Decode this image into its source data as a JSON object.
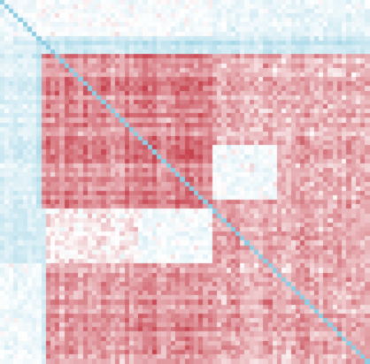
{
  "chart_data": {
    "type": "heatmap",
    "title": "",
    "xlabel": "",
    "ylabel": "",
    "n_rows": 80,
    "n_cols": 80,
    "value_range": [
      -1,
      1
    ],
    "colors": {
      "positive": "#c7434f",
      "neutral": "#ffffff",
      "negative": "#9fd4e6",
      "diagonal": "#8fcde3"
    },
    "diagonal_value": -1,
    "blocks": [
      {
        "rows": [
          0,
          8
        ],
        "cols": [
          0,
          8
        ],
        "mean": -0.15,
        "noise": 0.35
      },
      {
        "rows": [
          0,
          8
        ],
        "cols": [
          8,
          46
        ],
        "mean": -0.05,
        "noise": 0.3
      },
      {
        "rows": [
          0,
          8
        ],
        "cols": [
          46,
          80
        ],
        "mean": -0.2,
        "noise": 0.3
      },
      {
        "rows": [
          8,
          12
        ],
        "cols": [
          8,
          80
        ],
        "mean": -0.55,
        "noise": 0.25
      },
      {
        "rows": [
          8,
          46
        ],
        "cols": [
          0,
          8
        ],
        "mean": -0.35,
        "noise": 0.3
      },
      {
        "rows": [
          8,
          46
        ],
        "cols": [
          8,
          9
        ],
        "mean": -0.7,
        "noise": 0.15
      },
      {
        "rows": [
          12,
          46
        ],
        "cols": [
          9,
          46
        ],
        "mean": 0.62,
        "noise": 0.28
      },
      {
        "rows": [
          12,
          46
        ],
        "cols": [
          46,
          80
        ],
        "mean": 0.42,
        "noise": 0.35
      },
      {
        "rows": [
          32,
          44
        ],
        "cols": [
          46,
          60
        ],
        "mean": -0.1,
        "noise": 0.35
      },
      {
        "rows": [
          46,
          58
        ],
        "cols": [
          0,
          9
        ],
        "mean": -0.45,
        "noise": 0.3
      },
      {
        "rows": [
          46,
          58
        ],
        "cols": [
          9,
          46
        ],
        "mean": 0.1,
        "noise": 0.4
      },
      {
        "rows": [
          46,
          58
        ],
        "cols": [
          30,
          46
        ],
        "mean": -0.1,
        "noise": 0.35
      },
      {
        "rows": [
          46,
          80
        ],
        "cols": [
          46,
          80
        ],
        "mean": 0.45,
        "noise": 0.35
      },
      {
        "rows": [
          58,
          80
        ],
        "cols": [
          0,
          9
        ],
        "mean": -0.15,
        "noise": 0.35
      },
      {
        "rows": [
          58,
          80
        ],
        "cols": [
          9,
          46
        ],
        "mean": 0.55,
        "noise": 0.32
      },
      {
        "rows": [
          46,
          80
        ],
        "cols": [
          9,
          10
        ],
        "mean": -0.5,
        "noise": 0.2
      }
    ],
    "seed": 7
  }
}
